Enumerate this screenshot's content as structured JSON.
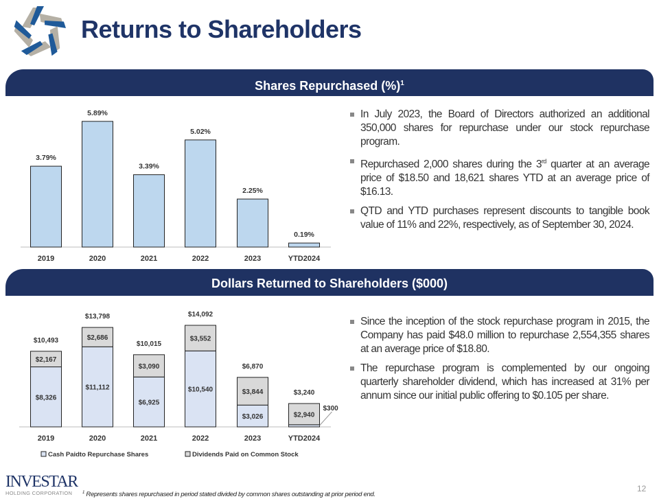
{
  "header": {
    "title": "Returns to Shareholders"
  },
  "section1": {
    "title": "Shares Repurchased (%)",
    "title_sup": "1",
    "bullets": [
      {
        "text": "In July 2023, the Board of Directors authorized an additional 350,000 shares for repurchase under our stock repurchase program."
      },
      {
        "pre": "Repurchased 2,000 shares during the 3",
        "sup": "rd",
        "post": " quarter at an average price of $18.50 and 18,621 shares YTD at an average price of $16.13."
      },
      {
        "text": "QTD and YTD purchases represent discounts to tangible book value of 11% and 22%, respectively, as of September 30, 2024."
      }
    ]
  },
  "section2": {
    "title": "Dollars Returned to Shareholders ($000)",
    "bullets": [
      {
        "text": "Since the inception of the stock repurchase program in 2015, the Company has paid $48.0 million to repurchase 2,554,355 shares at an average price of $18.80."
      },
      {
        "text": "The repurchase program is complemented by our ongoing quarterly shareholder dividend, which has increased at 31% per annum since our initial public offering to $0.105 per share."
      }
    ]
  },
  "chart_data": [
    {
      "type": "bar",
      "categories": [
        "2019",
        "2020",
        "2021",
        "2022",
        "2023",
        "YTD2024"
      ],
      "values": [
        3.79,
        5.89,
        3.39,
        5.02,
        2.25,
        0.19
      ],
      "labels": [
        "3.79%",
        "5.89%",
        "3.39%",
        "5.02%",
        "2.25%",
        "0.19%"
      ],
      "ylim": [
        0,
        6.5
      ],
      "grid": false,
      "color": "#bdd7ee"
    },
    {
      "type": "bar",
      "stacked": true,
      "categories": [
        "2019",
        "2020",
        "2021",
        "2022",
        "2023",
        "YTD2024"
      ],
      "series": [
        {
          "name": "Cash Paidto Repurchase Shares",
          "values": [
            8326,
            11112,
            6925,
            10540,
            3026,
            300
          ],
          "labels": [
            "$8,326",
            "$11,112",
            "$6,925",
            "$10,540",
            "$3,026",
            "$300"
          ],
          "color": "#dae3f3"
        },
        {
          "name": "Dividends Paid on Common Stock",
          "values": [
            2167,
            2686,
            3090,
            3552,
            3844,
            2940
          ],
          "labels": [
            "$2,167",
            "$2,686",
            "$3,090",
            "$3,552",
            "$3,844",
            "$2,940"
          ],
          "color": "#d9d9d9"
        }
      ],
      "totals": [
        "$10,493",
        "$13,798",
        "$10,015",
        "$14,092",
        "$6,870",
        "$3,240"
      ],
      "ylim": [
        0,
        15000
      ],
      "grid": false,
      "legend": "bottom"
    }
  ],
  "footer": {
    "logo_text": "INVESTAR",
    "logo_sub": "HOLDING CORPORATION",
    "footnote_sup": "1",
    "footnote": "Represents shares repurchased in period stated divided by common shares outstanding at prior period end.",
    "page": "12"
  },
  "colors": {
    "navy": "#1f3262",
    "accent_blue": "#1f5a99"
  }
}
